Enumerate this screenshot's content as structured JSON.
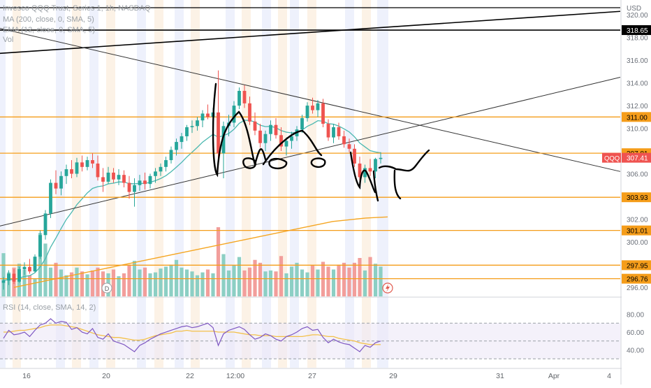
{
  "header": {
    "title": "Invesco QQQ Trust, Series 1, 1h, NASDAQ",
    "ma_label": "MA (200, close, 0, SMA, 5)",
    "ema_label": "EMA (12, close, 0, SMA, 5)",
    "vol_label": "Vol",
    "rsi_label": "RSI (14, close, SMA, 14, 2)"
  },
  "price_axis": {
    "currency": "USD",
    "ticks": [
      "320.00",
      "318.00",
      "316.00",
      "314.00",
      "312.00",
      "310.00",
      "308.00",
      "306.00",
      "304.00",
      "302.00",
      "300.00",
      "298.00",
      "296.00"
    ],
    "range": [
      295.2,
      321.3
    ]
  },
  "rsi_axis": {
    "ticks": [
      "80.00",
      "60.00",
      "40.00"
    ],
    "range": [
      20,
      82
    ]
  },
  "time_axis": {
    "labels": [
      "16",
      "20",
      "22",
      "12:00",
      "27",
      "29",
      "31",
      "Apr",
      "4"
    ]
  },
  "price_label": {
    "symbol": "QQQ",
    "value": "307.41"
  },
  "horizontal_levels": [
    {
      "value": 318.65,
      "label": "318.65",
      "color": "#000000"
    },
    {
      "value": 311.0,
      "label": "311.00",
      "color": "#f59d1a"
    },
    {
      "value": 307.81,
      "label": "307.81",
      "color": "#f59d1a"
    },
    {
      "value": 303.93,
      "label": "303.93",
      "color": "#f59d1a"
    },
    {
      "value": 301.01,
      "label": "301.01",
      "color": "#f59d1a"
    },
    {
      "value": 297.95,
      "label": "297.95",
      "color": "#f59d1a"
    },
    {
      "value": 296.76,
      "label": "296.76",
      "color": "#f59d1a"
    }
  ],
  "markers": {
    "dividend": "D",
    "events": "lightning-icon"
  },
  "colors": {
    "up": "#26a69a",
    "down": "#ef5350",
    "vol_up": "#8ccfc4",
    "vol_down": "#f29e9b",
    "ema": "#4bb8b0",
    "ma": "#f5a623",
    "rsi": "#7e57c2",
    "rsi_ma": "#f3c14a",
    "level": "#f59d1a",
    "label_bg": "#f59d1a"
  },
  "chart_data": {
    "type": "candlestick",
    "title": "Invesco QQQ Trust, Series 1, 1h, NASDAQ",
    "ohlc": [
      [
        296.4,
        296.9,
        295.8,
        296.6
      ],
      [
        296.6,
        297.5,
        296.2,
        297.2
      ],
      [
        297.2,
        297.6,
        296.3,
        296.5
      ],
      [
        296.5,
        297.8,
        296.4,
        297.6
      ],
      [
        297.6,
        298.2,
        297.1,
        297.8
      ],
      [
        297.8,
        298.5,
        297.2,
        297.4
      ],
      [
        297.4,
        298.9,
        297.3,
        298.7
      ],
      [
        298.7,
        301.0,
        298.5,
        300.6
      ],
      [
        300.6,
        302.8,
        300.2,
        302.5
      ],
      [
        302.5,
        305.5,
        302.1,
        305.2
      ],
      [
        305.2,
        306.3,
        304.2,
        304.7
      ],
      [
        304.7,
        306.2,
        304.1,
        305.8
      ],
      [
        305.8,
        306.8,
        305.1,
        306.4
      ],
      [
        306.4,
        307.2,
        305.6,
        306.0
      ],
      [
        306.0,
        307.4,
        305.7,
        307.0
      ],
      [
        307.0,
        307.6,
        306.2,
        306.6
      ],
      [
        306.6,
        307.5,
        306.3,
        307.2
      ],
      [
        307.2,
        307.8,
        306.5,
        306.9
      ],
      [
        306.9,
        307.6,
        305.4,
        305.7
      ],
      [
        305.7,
        306.5,
        304.4,
        305.3
      ],
      [
        305.3,
        306.6,
        305.1,
        306.1
      ],
      [
        306.1,
        306.5,
        305.2,
        305.5
      ],
      [
        305.5,
        306.4,
        305.0,
        305.9
      ],
      [
        305.9,
        306.3,
        304.8,
        305.2
      ],
      [
        305.2,
        305.8,
        303.8,
        304.4
      ],
      [
        304.4,
        305.6,
        303.1,
        305.0
      ],
      [
        305.0,
        305.9,
        304.5,
        305.4
      ],
      [
        305.4,
        306.1,
        304.6,
        305.1
      ],
      [
        305.1,
        306.0,
        304.7,
        305.8
      ],
      [
        305.8,
        306.5,
        305.2,
        306.2
      ],
      [
        306.2,
        306.9,
        305.8,
        306.6
      ],
      [
        306.6,
        307.5,
        306.2,
        307.2
      ],
      [
        307.2,
        308.4,
        306.9,
        308.1
      ],
      [
        308.1,
        309.1,
        307.6,
        308.8
      ],
      [
        308.8,
        309.6,
        308.2,
        309.3
      ],
      [
        309.3,
        310.3,
        308.9,
        310.1
      ],
      [
        310.1,
        310.7,
        309.6,
        310.2
      ],
      [
        310.2,
        311.0,
        309.8,
        310.7
      ],
      [
        310.7,
        311.6,
        310.1,
        311.3
      ],
      [
        311.3,
        312.1,
        310.8,
        311.0
      ],
      [
        311.0,
        311.8,
        310.5,
        311.4
      ],
      [
        311.4,
        315.1,
        306.5,
        307.8
      ],
      [
        307.8,
        310.6,
        305.6,
        310.2
      ],
      [
        310.2,
        311.2,
        309.3,
        310.5
      ],
      [
        310.5,
        312.4,
        310.1,
        312.0
      ],
      [
        312.0,
        313.6,
        311.7,
        313.3
      ],
      [
        313.3,
        313.8,
        311.8,
        312.2
      ],
      [
        312.2,
        312.8,
        310.3,
        310.6
      ],
      [
        310.6,
        311.4,
        309.4,
        309.8
      ],
      [
        309.8,
        310.4,
        308.3,
        308.7
      ],
      [
        308.7,
        309.8,
        308.0,
        309.5
      ],
      [
        309.5,
        310.7,
        308.9,
        310.3
      ],
      [
        310.3,
        310.9,
        309.1,
        309.4
      ],
      [
        309.4,
        310.1,
        308.0,
        308.4
      ],
      [
        308.4,
        309.2,
        307.6,
        308.9
      ],
      [
        308.9,
        309.7,
        308.2,
        309.3
      ],
      [
        309.3,
        310.2,
        308.9,
        309.9
      ],
      [
        309.9,
        311.2,
        309.6,
        310.9
      ],
      [
        310.9,
        312.3,
        310.6,
        312.0
      ],
      [
        312.0,
        312.7,
        311.3,
        311.6
      ],
      [
        311.6,
        312.5,
        311.0,
        312.2
      ],
      [
        312.2,
        312.6,
        310.1,
        310.4
      ],
      [
        310.4,
        310.8,
        308.9,
        309.2
      ],
      [
        309.2,
        310.4,
        308.7,
        310.1
      ],
      [
        310.1,
        310.5,
        309.0,
        309.3
      ],
      [
        309.3,
        309.8,
        308.3,
        308.6
      ],
      [
        308.6,
        309.1,
        307.9,
        308.2
      ],
      [
        308.2,
        308.6,
        306.6,
        306.9
      ],
      [
        306.9,
        307.5,
        305.4,
        305.7
      ],
      [
        305.7,
        306.8,
        305.2,
        306.5
      ],
      [
        306.5,
        307.3,
        305.8,
        306.2
      ],
      [
        306.2,
        307.4,
        305.6,
        307.3
      ],
      [
        307.3,
        307.9,
        306.9,
        307.4
      ]
    ],
    "volume": [
      45,
      25,
      30,
      34,
      28,
      22,
      18,
      66,
      55,
      30,
      35,
      28,
      22,
      25,
      30,
      26,
      23,
      27,
      30,
      26,
      24,
      28,
      21,
      24,
      33,
      37,
      28,
      30,
      24,
      25,
      29,
      31,
      33,
      38,
      30,
      28,
      26,
      22,
      25,
      28,
      24,
      72,
      44,
      27,
      32,
      41,
      27,
      30,
      38,
      35,
      26,
      27,
      26,
      42,
      24,
      31,
      35,
      28,
      25,
      32,
      28,
      36,
      31,
      28,
      33,
      35,
      30,
      35,
      40,
      27,
      41,
      34,
      31
    ],
    "rsi": [
      53,
      62,
      57,
      58,
      60,
      55,
      62,
      68,
      70,
      75,
      70,
      72,
      71,
      63,
      65,
      60,
      58,
      64,
      54,
      52,
      58,
      50,
      48,
      46,
      42,
      38,
      45,
      48,
      52,
      55,
      58,
      60,
      62,
      64,
      66,
      67,
      65,
      66,
      68,
      70,
      65,
      45,
      58,
      62,
      64,
      66,
      63,
      57,
      52,
      54,
      58,
      56,
      52,
      50,
      55,
      57,
      60,
      64,
      66,
      62,
      63,
      54,
      48,
      52,
      49,
      47,
      46,
      42,
      38,
      45,
      43,
      48,
      50
    ],
    "rsi_ma": [
      60,
      60,
      61,
      62,
      62,
      63,
      64,
      65,
      67,
      68,
      68,
      68,
      67,
      66,
      65,
      63,
      61,
      59,
      57,
      56,
      55,
      54,
      54,
      53,
      52,
      51,
      51,
      52,
      54,
      56,
      57,
      58,
      59,
      61,
      61,
      62,
      61,
      61,
      61,
      61,
      61,
      60,
      60,
      60,
      60,
      59,
      58,
      57,
      57,
      56,
      56,
      56,
      55,
      55,
      55,
      55,
      55,
      55,
      56,
      57,
      57,
      56,
      55,
      55,
      53,
      52,
      51,
      50,
      48,
      47,
      46,
      46,
      46
    ],
    "ma200": [
      296.0,
      296.2,
      296.4,
      296.6,
      296.8,
      297.0,
      297.2,
      297.4,
      297.6,
      297.8,
      298.0,
      298.2,
      298.4,
      298.6,
      298.8,
      299.0,
      299.2,
      299.4,
      299.6,
      299.8,
      300.0,
      300.2,
      300.4,
      300.6,
      300.8,
      301.0,
      301.2,
      301.4,
      301.6,
      301.8,
      301.9,
      302.0,
      302.1,
      302.15,
      302.2
    ],
    "price_range": [
      295.2,
      321.3
    ],
    "rsi_range": [
      20,
      82
    ]
  }
}
